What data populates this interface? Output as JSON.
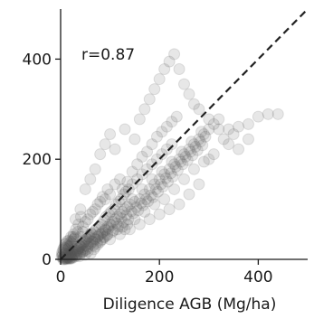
{
  "chart_data": {
    "type": "scatter",
    "title": "",
    "xlabel": "Diligence AGB (Mg/ha)",
    "ylabel": "",
    "xlim": [
      0,
      500
    ],
    "ylim": [
      0,
      500
    ],
    "xticks": [
      0,
      200,
      400
    ],
    "yticks": [
      0,
      200,
      400
    ],
    "x_tick_labels": [
      "0",
      "200",
      "400"
    ],
    "y_tick_labels": [
      "0",
      "200",
      "400"
    ],
    "grid": false,
    "annotation": "r=0.87",
    "reference_line": {
      "style": "dashed",
      "color": "#222222",
      "from": [
        0,
        0
      ],
      "to": [
        500,
        500
      ]
    },
    "point_color": "#555555",
    "series": [
      {
        "points": [
          [
            5,
            3
          ],
          [
            8,
            6
          ],
          [
            10,
            12
          ],
          [
            12,
            4
          ],
          [
            15,
            9
          ],
          [
            18,
            14
          ],
          [
            20,
            6
          ],
          [
            22,
            18
          ],
          [
            25,
            10
          ],
          [
            28,
            20
          ],
          [
            30,
            8
          ],
          [
            32,
            25
          ],
          [
            35,
            15
          ],
          [
            38,
            28
          ],
          [
            40,
            12
          ],
          [
            42,
            30
          ],
          [
            45,
            20
          ],
          [
            48,
            35
          ],
          [
            50,
            18
          ],
          [
            52,
            40
          ],
          [
            55,
            25
          ],
          [
            58,
            45
          ],
          [
            60,
            30
          ],
          [
            62,
            50
          ],
          [
            65,
            35
          ],
          [
            68,
            55
          ],
          [
            70,
            40
          ],
          [
            72,
            60
          ],
          [
            75,
            45
          ],
          [
            78,
            65
          ],
          [
            80,
            50
          ],
          [
            82,
            70
          ],
          [
            85,
            55
          ],
          [
            88,
            78
          ],
          [
            90,
            60
          ],
          [
            92,
            85
          ],
          [
            95,
            65
          ],
          [
            98,
            90
          ],
          [
            100,
            70
          ],
          [
            102,
            95
          ],
          [
            105,
            75
          ],
          [
            108,
            100
          ],
          [
            110,
            80
          ],
          [
            112,
            110
          ],
          [
            115,
            85
          ],
          [
            118,
            115
          ],
          [
            120,
            90
          ],
          [
            122,
            120
          ],
          [
            125,
            95
          ],
          [
            128,
            130
          ],
          [
            130,
            100
          ],
          [
            132,
            135
          ],
          [
            135,
            105
          ],
          [
            138,
            140
          ],
          [
            140,
            110
          ],
          [
            145,
            150
          ],
          [
            150,
            115
          ],
          [
            155,
            160
          ],
          [
            160,
            120
          ],
          [
            165,
            170
          ],
          [
            170,
            130
          ],
          [
            175,
            180
          ],
          [
            180,
            140
          ],
          [
            185,
            190
          ],
          [
            190,
            150
          ],
          [
            195,
            200
          ],
          [
            200,
            160
          ],
          [
            205,
            210
          ],
          [
            210,
            170
          ],
          [
            215,
            220
          ],
          [
            220,
            180
          ],
          [
            225,
            230
          ],
          [
            230,
            190
          ],
          [
            240,
            200
          ],
          [
            250,
            210
          ],
          [
            260,
            220
          ],
          [
            270,
            230
          ],
          [
            280,
            240
          ],
          [
            290,
            250
          ],
          [
            300,
            260
          ],
          [
            310,
            270
          ],
          [
            320,
            280
          ],
          [
            330,
            240
          ],
          [
            340,
            260
          ],
          [
            350,
            250
          ],
          [
            360,
            265
          ],
          [
            380,
            270
          ],
          [
            400,
            285
          ],
          [
            420,
            290
          ],
          [
            440,
            290
          ],
          [
            50,
            140
          ],
          [
            40,
            100
          ],
          [
            30,
            80
          ],
          [
            60,
            160
          ],
          [
            70,
            180
          ],
          [
            80,
            210
          ],
          [
            90,
            230
          ],
          [
            100,
            250
          ],
          [
            110,
            220
          ],
          [
            130,
            260
          ],
          [
            150,
            240
          ],
          [
            160,
            280
          ],
          [
            170,
            300
          ],
          [
            180,
            320
          ],
          [
            190,
            340
          ],
          [
            200,
            360
          ],
          [
            210,
            380
          ],
          [
            220,
            395
          ],
          [
            230,
            410
          ],
          [
            240,
            380
          ],
          [
            250,
            350
          ],
          [
            260,
            330
          ],
          [
            270,
            310
          ],
          [
            280,
            300
          ],
          [
            300,
            280
          ],
          [
            320,
            260
          ],
          [
            340,
            230
          ],
          [
            360,
            220
          ],
          [
            380,
            240
          ],
          [
            300,
            200
          ],
          [
            100,
            40
          ],
          [
            120,
            50
          ],
          [
            140,
            60
          ],
          [
            160,
            70
          ],
          [
            180,
            80
          ],
          [
            200,
            90
          ],
          [
            220,
            100
          ],
          [
            240,
            110
          ],
          [
            260,
            130
          ],
          [
            280,
            150
          ],
          [
            15,
            25
          ],
          [
            20,
            35
          ],
          [
            25,
            45
          ],
          [
            35,
            55
          ],
          [
            45,
            65
          ],
          [
            55,
            80
          ],
          [
            65,
            95
          ],
          [
            75,
            110
          ],
          [
            85,
            125
          ],
          [
            95,
            140
          ],
          [
            18,
            2
          ],
          [
            22,
            8
          ],
          [
            28,
            5
          ],
          [
            33,
            10
          ],
          [
            38,
            6
          ],
          [
            44,
            14
          ],
          [
            49,
            9
          ],
          [
            55,
            16
          ],
          [
            61,
            12
          ],
          [
            67,
            20
          ],
          [
            3,
            10
          ],
          [
            6,
            18
          ],
          [
            9,
            22
          ],
          [
            14,
            28
          ],
          [
            17,
            38
          ],
          [
            21,
            45
          ],
          [
            26,
            50
          ],
          [
            31,
            60
          ],
          [
            36,
            70
          ],
          [
            41,
            85
          ],
          [
            10,
            2
          ],
          [
            11,
            7
          ],
          [
            13,
            3
          ],
          [
            14,
            11
          ],
          [
            16,
            5
          ],
          [
            19,
            8
          ],
          [
            21,
            13
          ],
          [
            23,
            4
          ],
          [
            24,
            16
          ],
          [
            26,
            9
          ],
          [
            29,
            12
          ],
          [
            31,
            17
          ],
          [
            33,
            7
          ],
          [
            36,
            21
          ],
          [
            39,
            14
          ],
          [
            43,
            24
          ],
          [
            46,
            16
          ],
          [
            51,
            27
          ],
          [
            54,
            21
          ],
          [
            57,
            32
          ],
          [
            63,
            36
          ],
          [
            66,
            28
          ],
          [
            69,
            42
          ],
          [
            73,
            33
          ],
          [
            77,
            48
          ],
          [
            81,
            38
          ],
          [
            84,
            52
          ],
          [
            87,
            44
          ],
          [
            91,
            58
          ],
          [
            94,
            48
          ],
          [
            97,
            62
          ],
          [
            103,
            68
          ],
          [
            107,
            58
          ],
          [
            113,
            72
          ],
          [
            117,
            66
          ],
          [
            123,
            82
          ],
          [
            127,
            74
          ],
          [
            133,
            88
          ],
          [
            137,
            80
          ],
          [
            143,
            96
          ],
          [
            147,
            92
          ],
          [
            153,
            104
          ],
          [
            157,
            98
          ],
          [
            163,
            112
          ],
          [
            167,
            108
          ],
          [
            173,
            120
          ],
          [
            177,
            116
          ],
          [
            183,
            128
          ],
          [
            187,
            124
          ],
          [
            193,
            140
          ],
          [
            197,
            135
          ],
          [
            203,
            150
          ],
          [
            207,
            145
          ],
          [
            213,
            162
          ],
          [
            217,
            155
          ],
          [
            223,
            172
          ],
          [
            227,
            165
          ],
          [
            233,
            185
          ],
          [
            237,
            178
          ],
          [
            243,
            195
          ],
          [
            247,
            190
          ],
          [
            253,
            205
          ],
          [
            257,
            198
          ],
          [
            263,
            215
          ],
          [
            267,
            208
          ],
          [
            273,
            225
          ],
          [
            277,
            218
          ],
          [
            283,
            235
          ],
          [
            287,
            228
          ],
          [
            293,
            245
          ],
          [
            145,
            175
          ],
          [
            155,
            190
          ],
          [
            165,
            205
          ],
          [
            175,
            215
          ],
          [
            185,
            230
          ],
          [
            195,
            245
          ],
          [
            205,
            255
          ],
          [
            215,
            265
          ],
          [
            225,
            275
          ],
          [
            235,
            285
          ],
          [
            120,
            160
          ],
          [
            110,
            150
          ],
          [
            100,
            130
          ],
          [
            90,
            120
          ],
          [
            80,
            115
          ],
          [
            70,
            100
          ],
          [
            60,
            90
          ],
          [
            50,
            75
          ],
          [
            45,
            55
          ],
          [
            40,
            45
          ],
          [
            130,
            60
          ],
          [
            150,
            80
          ],
          [
            170,
            95
          ],
          [
            190,
            110
          ],
          [
            210,
            120
          ],
          [
            230,
            140
          ],
          [
            250,
            160
          ],
          [
            270,
            180
          ],
          [
            290,
            195
          ],
          [
            310,
            210
          ],
          [
            125,
            140
          ],
          [
            135,
            155
          ],
          [
            145,
            120
          ],
          [
            165,
            140
          ],
          [
            185,
            160
          ],
          [
            205,
            175
          ],
          [
            225,
            195
          ],
          [
            245,
            215
          ],
          [
            265,
            235
          ],
          [
            285,
            255
          ],
          [
            70,
            25
          ],
          [
            75,
            30
          ],
          [
            80,
            35
          ],
          [
            85,
            40
          ],
          [
            90,
            45
          ],
          [
            95,
            50
          ],
          [
            105,
            55
          ],
          [
            115,
            60
          ],
          [
            125,
            65
          ],
          [
            135,
            70
          ],
          [
            12,
            15
          ],
          [
            14,
            20
          ],
          [
            16,
            22
          ],
          [
            18,
            26
          ],
          [
            20,
            28
          ],
          [
            22,
            32
          ],
          [
            24,
            36
          ],
          [
            26,
            40
          ],
          [
            28,
            42
          ],
          [
            30,
            46
          ],
          [
            34,
            18
          ],
          [
            37,
            22
          ],
          [
            40,
            26
          ],
          [
            43,
            29
          ],
          [
            47,
            33
          ],
          [
            50,
            37
          ],
          [
            53,
            41
          ],
          [
            56,
            44
          ],
          [
            59,
            48
          ],
          [
            62,
            52
          ],
          [
            5,
            0
          ],
          [
            7,
            1
          ],
          [
            9,
            0
          ],
          [
            11,
            2
          ],
          [
            13,
            1
          ],
          [
            15,
            2
          ],
          [
            17,
            3
          ],
          [
            19,
            1
          ],
          [
            21,
            3
          ],
          [
            23,
            2
          ],
          [
            2,
            5
          ],
          [
            4,
            8
          ],
          [
            6,
            3
          ],
          [
            8,
            10
          ],
          [
            3,
            14
          ],
          [
            5,
            20
          ],
          [
            7,
            24
          ],
          [
            9,
            30
          ],
          [
            11,
            32
          ],
          [
            13,
            36
          ]
        ]
      }
    ]
  }
}
